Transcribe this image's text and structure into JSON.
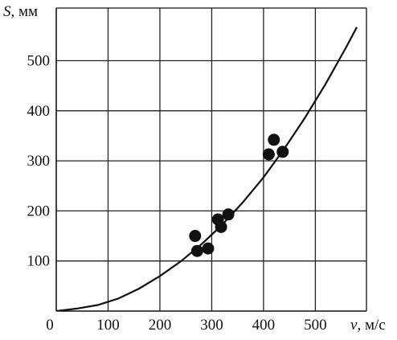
{
  "chart_data": {
    "type": "scatter",
    "title": "",
    "xlabel": {
      "var": "v",
      "unit": ", м/с"
    },
    "ylabel": {
      "var": "S",
      "unit": ", мм"
    },
    "xlim": [
      0,
      580
    ],
    "ylim": [
      0,
      610
    ],
    "xticks": [
      0,
      100,
      200,
      300,
      400,
      500
    ],
    "yticks": [
      100,
      200,
      300,
      400,
      500
    ],
    "grid": true,
    "series": [
      {
        "kind": "points",
        "points": [
          {
            "x": 268,
            "y": 150
          },
          {
            "x": 272,
            "y": 120
          },
          {
            "x": 293,
            "y": 125
          },
          {
            "x": 312,
            "y": 183
          },
          {
            "x": 318,
            "y": 168
          },
          {
            "x": 332,
            "y": 193
          },
          {
            "x": 410,
            "y": 313
          },
          {
            "x": 420,
            "y": 342
          },
          {
            "x": 437,
            "y": 318
          }
        ]
      },
      {
        "kind": "fit-curve",
        "x": [
          0,
          40,
          80,
          120,
          160,
          200,
          240,
          280,
          320,
          360,
          400,
          440,
          480,
          520,
          560,
          580
        ],
        "y": [
          0,
          5,
          12,
          25,
          45,
          70,
          99,
          133,
          172,
          217,
          267,
          324,
          386,
          454,
          528,
          567
        ]
      }
    ]
  }
}
